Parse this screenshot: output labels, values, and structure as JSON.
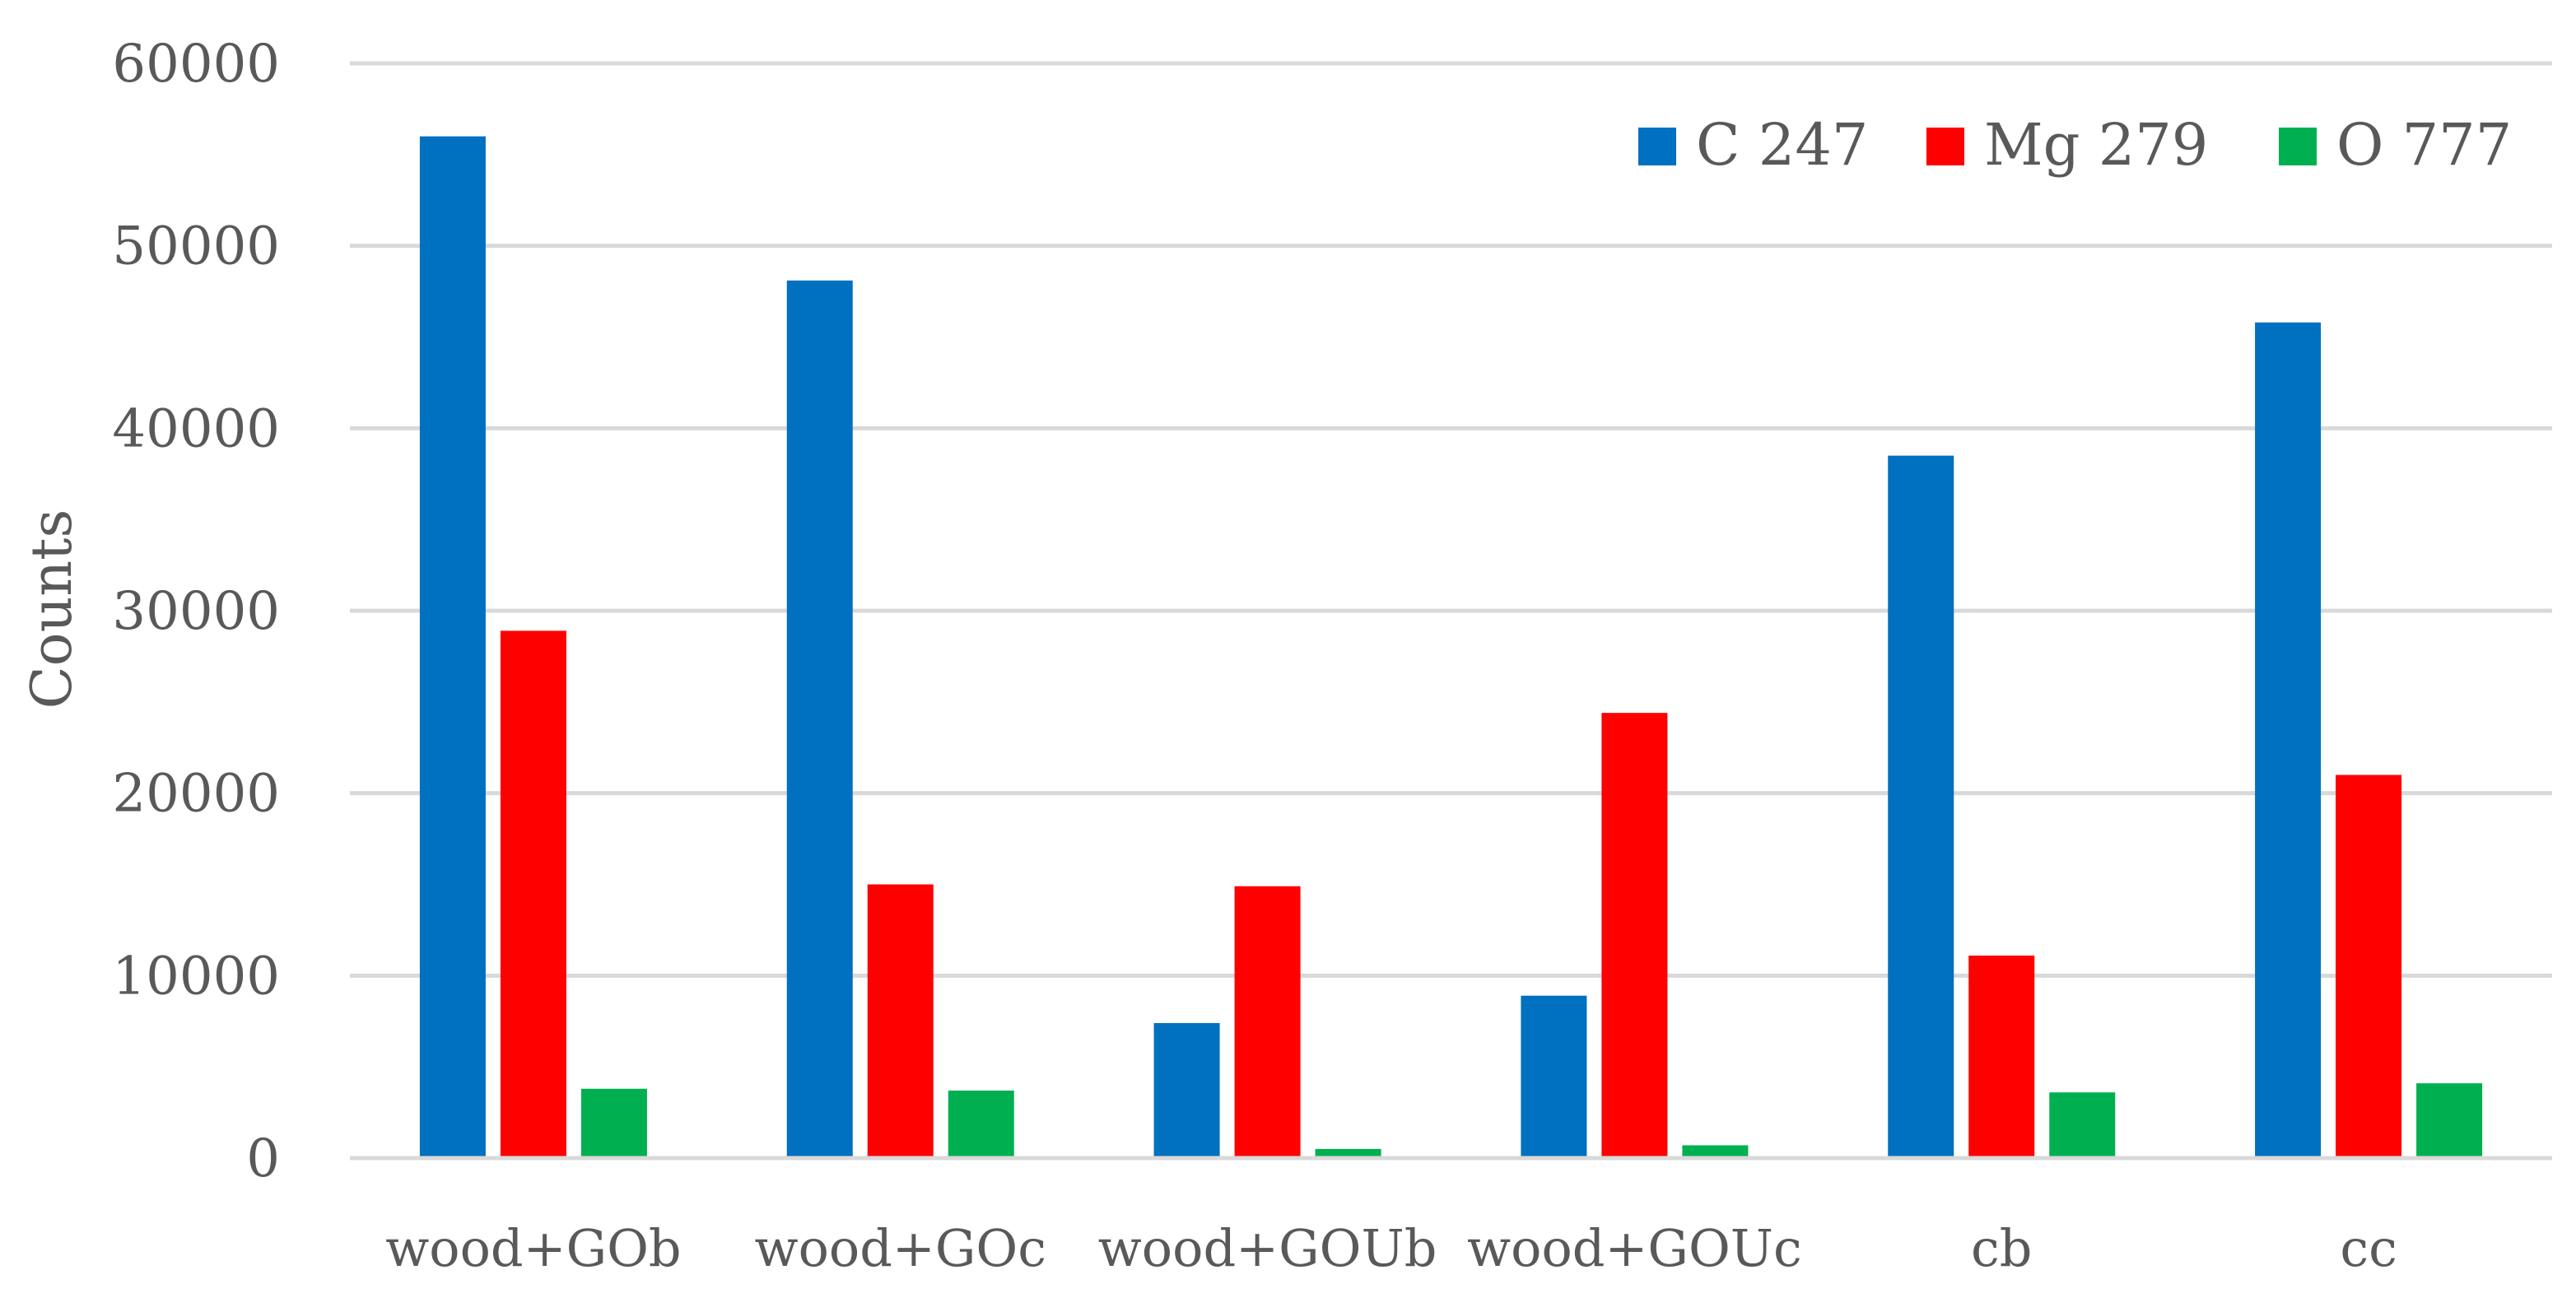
{
  "chart_data": {
    "type": "bar",
    "title": "",
    "xlabel": "",
    "ylabel": "Counts",
    "ylim": [
      0,
      60000
    ],
    "yticks": [
      0,
      10000,
      20000,
      30000,
      40000,
      50000,
      60000
    ],
    "grid": true,
    "legend_position": "top-right",
    "categories": [
      "wood+GOb",
      "wood+GOc",
      "wood+GOUb",
      "wood+GOUc",
      "cb",
      "cc"
    ],
    "series": [
      {
        "name": "C 247",
        "color": "#0070c0",
        "values": [
          56000,
          48100,
          7400,
          8900,
          38500,
          45800
        ]
      },
      {
        "name": "Mg 279",
        "color": "#ff0000",
        "values": [
          28900,
          15000,
          14900,
          24400,
          11100,
          21000
        ]
      },
      {
        "name": "O 777",
        "color": "#00b050",
        "values": [
          3800,
          3700,
          500,
          700,
          3600,
          4100
        ]
      }
    ]
  }
}
